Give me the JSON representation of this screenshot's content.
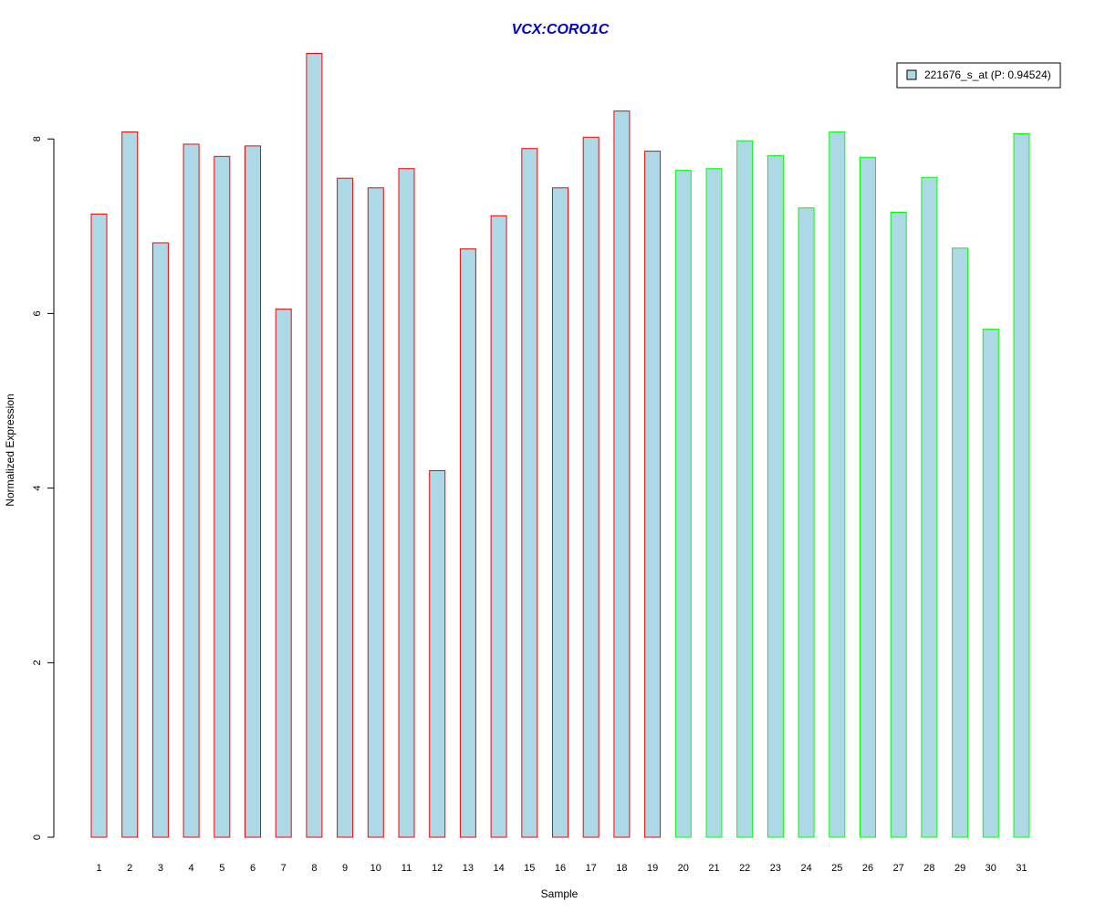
{
  "chart_data": {
    "type": "bar",
    "title": "VCX:CORO1C",
    "xlabel": "Sample",
    "ylabel": "Normalized Expression",
    "categories": [
      "1",
      "2",
      "3",
      "4",
      "5",
      "6",
      "7",
      "8",
      "9",
      "10",
      "11",
      "12",
      "13",
      "14",
      "15",
      "16",
      "17",
      "18",
      "19",
      "20",
      "21",
      "22",
      "23",
      "24",
      "25",
      "26",
      "27",
      "28",
      "29",
      "30",
      "31"
    ],
    "series": [
      {
        "name": "221676_s_at (P: 0.94524)",
        "values": [
          7.14,
          8.08,
          6.81,
          7.94,
          7.8,
          7.92,
          6.05,
          8.98,
          7.55,
          7.44,
          7.66,
          4.2,
          6.74,
          7.12,
          7.89,
          7.44,
          8.02,
          8.32,
          7.86,
          7.64,
          7.66,
          7.98,
          7.81,
          7.21,
          8.08,
          7.79,
          7.16,
          7.56,
          6.75,
          5.82,
          8.06
        ]
      }
    ],
    "group_border_colors": [
      "#ff0000",
      "#ff0000",
      "#ff0000",
      "#ff0000",
      "#ff0000",
      "#ff0000",
      "#ff0000",
      "#ff0000",
      "#ff0000",
      "#ff0000",
      "#ff0000",
      "#ff0000",
      "#ff0000",
      "#ff0000",
      "#ff0000",
      "#ff0000",
      "#ff0000",
      "#ff0000",
      "#ff0000",
      "#00ff00",
      "#00ff00",
      "#00ff00",
      "#00ff00",
      "#00ff00",
      "#00ff00",
      "#00ff00",
      "#00ff00",
      "#00ff00",
      "#00ff00",
      "#00ff00",
      "#00ff00"
    ],
    "bar_fill": "#add8e6",
    "title_color": "#0000cc",
    "yticks": [
      0,
      2,
      4,
      6,
      8
    ],
    "ylim": [
      0,
      9
    ],
    "grid": false,
    "legend_position": "top-right"
  }
}
